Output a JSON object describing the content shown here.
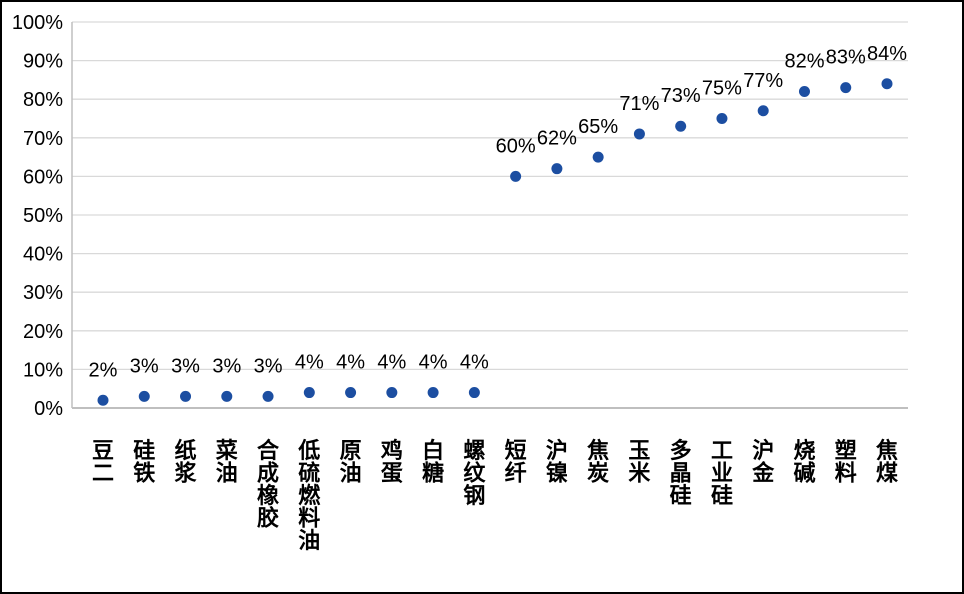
{
  "chart_data": {
    "type": "scatter",
    "title": "",
    "xlabel": "",
    "ylabel": "",
    "ylim": [
      0,
      100
    ],
    "grid": true,
    "legend_position": "none",
    "y_tick_labels": [
      "0%",
      "10%",
      "20%",
      "30%",
      "40%",
      "50%",
      "60%",
      "70%",
      "80%",
      "90%",
      "100%"
    ],
    "y_tick_values": [
      0,
      10,
      20,
      30,
      40,
      50,
      60,
      70,
      80,
      90,
      100
    ],
    "categories": [
      "豆二",
      "硅铁",
      "纸浆",
      "菜油",
      "合成橡胶",
      "低硫燃料油",
      "原油",
      "鸡蛋",
      "白糖",
      "螺纹钢",
      "短纤",
      "沪镍",
      "焦炭",
      "玉米",
      "多晶硅",
      "工业硅",
      "沪金",
      "烧碱",
      "塑料",
      "焦煤"
    ],
    "values": [
      2,
      3,
      3,
      3,
      3,
      4,
      4,
      4,
      4,
      4,
      60,
      62,
      65,
      71,
      73,
      75,
      77,
      82,
      83,
      84
    ],
    "data_labels": [
      "2%",
      "3%",
      "3%",
      "3%",
      "3%",
      "4%",
      "4%",
      "4%",
      "4%",
      "4%",
      "60%",
      "62%",
      "65%",
      "71%",
      "73%",
      "75%",
      "77%",
      "82%",
      "83%",
      "84%"
    ],
    "colors": {
      "marker": "#1C4EA1",
      "gridline": "#D9D9D9",
      "axis": "#BFBFBF",
      "tick_text": "#000000",
      "data_label_text": "#000000",
      "category_text": "#000000",
      "frame_border": "#000000",
      "background": "#FFFFFF"
    }
  }
}
